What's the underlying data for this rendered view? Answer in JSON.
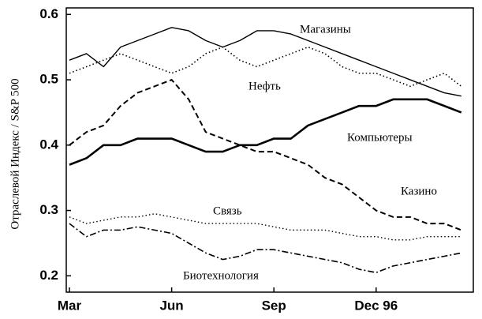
{
  "chart_data": {
    "type": "line",
    "ylabel": "Отраслевой Индекс / S&P 500",
    "categories": [
      "Mar",
      null,
      null,
      null,
      null,
      null,
      "Jun",
      null,
      null,
      null,
      null,
      null,
      "Sep",
      null,
      null,
      null,
      null,
      null,
      "Dec 96",
      null,
      null,
      null,
      null,
      null
    ],
    "ylim": [
      0.175,
      0.61
    ],
    "yticks": [
      0.2,
      0.3,
      0.4,
      0.5,
      0.6
    ],
    "series": [
      {
        "name": "Магазины",
        "color": "#000000",
        "dash": "solid",
        "width": 1.4,
        "values": [
          0.53,
          0.54,
          0.52,
          0.55,
          0.56,
          0.57,
          0.58,
          0.575,
          0.56,
          0.55,
          0.56,
          0.575,
          0.575,
          0.57,
          0.56,
          0.55,
          0.54,
          0.53,
          0.52,
          0.51,
          0.5,
          0.49,
          0.48,
          0.475
        ]
      },
      {
        "name": "Нефть",
        "color": "#000000",
        "dash": "dotted",
        "width": 1.6,
        "values": [
          0.51,
          0.52,
          0.53,
          0.54,
          0.53,
          0.52,
          0.51,
          0.52,
          0.54,
          0.55,
          0.53,
          0.52,
          0.53,
          0.54,
          0.55,
          0.54,
          0.52,
          0.51,
          0.51,
          0.5,
          0.49,
          0.5,
          0.51,
          0.49
        ]
      },
      {
        "name": "Компьютеры",
        "color": "#000000",
        "dash": "solid",
        "width": 2.6,
        "values": [
          0.37,
          0.38,
          0.4,
          0.4,
          0.41,
          0.41,
          0.41,
          0.4,
          0.39,
          0.39,
          0.4,
          0.4,
          0.41,
          0.41,
          0.43,
          0.44,
          0.45,
          0.46,
          0.46,
          0.47,
          0.47,
          0.47,
          0.46,
          0.45
        ]
      },
      {
        "name": "Казино",
        "color": "#000000",
        "dash": "dashed",
        "width": 2,
        "values": [
          0.4,
          0.42,
          0.43,
          0.46,
          0.48,
          0.49,
          0.5,
          0.47,
          0.42,
          0.41,
          0.4,
          0.39,
          0.39,
          0.38,
          0.37,
          0.35,
          0.34,
          0.32,
          0.3,
          0.29,
          0.29,
          0.28,
          0.28,
          0.27
        ]
      },
      {
        "name": "Связь",
        "color": "#000000",
        "dash": "dotted",
        "width": 1.4,
        "values": [
          0.29,
          0.28,
          0.285,
          0.29,
          0.29,
          0.295,
          0.29,
          0.285,
          0.28,
          0.28,
          0.28,
          0.28,
          0.275,
          0.27,
          0.27,
          0.27,
          0.265,
          0.26,
          0.26,
          0.255,
          0.255,
          0.26,
          0.26,
          0.26
        ]
      },
      {
        "name": "Биотехнология",
        "color": "#000000",
        "dash": "dashdot",
        "width": 1.6,
        "values": [
          0.28,
          0.26,
          0.27,
          0.27,
          0.275,
          0.27,
          0.265,
          0.25,
          0.235,
          0.225,
          0.23,
          0.24,
          0.24,
          0.235,
          0.23,
          0.225,
          0.22,
          0.21,
          0.205,
          0.215,
          0.22,
          0.225,
          0.23,
          0.235
        ]
      }
    ]
  }
}
